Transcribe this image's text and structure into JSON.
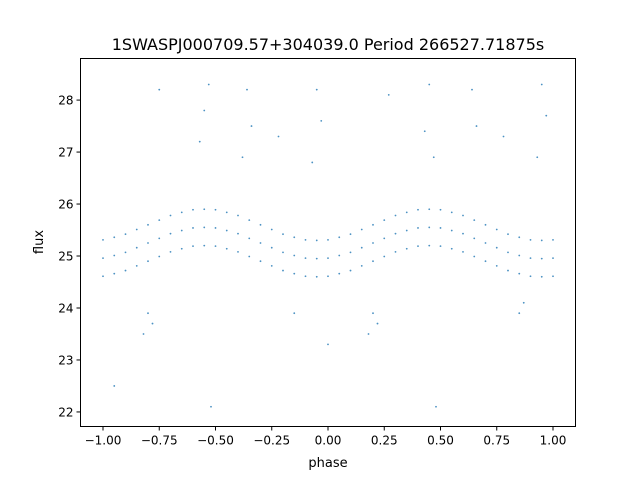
{
  "chart_data": {
    "type": "scatter",
    "title": "1SWASPJ000709.57+304039.0 Period 266527.71875s",
    "xlabel": "phase",
    "ylabel": "flux",
    "xlim": [
      -1.1,
      1.1
    ],
    "ylim": [
      21.72,
      28.8
    ],
    "xticks": [
      -1.0,
      -0.75,
      -0.5,
      -0.25,
      0.0,
      0.25,
      0.5,
      0.75,
      1.0
    ],
    "xtick_labels": [
      "−1.00",
      "−0.75",
      "−0.50",
      "−0.25",
      "0.00",
      "0.25",
      "0.50",
      "0.75",
      "1.00"
    ],
    "yticks": [
      22,
      23,
      24,
      25,
      26,
      27,
      28
    ],
    "ytick_labels": [
      "22",
      "23",
      "24",
      "25",
      "26",
      "27",
      "28"
    ],
    "grid": false,
    "legend": "none",
    "point_color": "#1f77b4",
    "note_points": "representative sample of the dense point cloud",
    "points": [
      [
        -1.0,
        24.61
      ],
      [
        -1.0,
        24.96
      ],
      [
        -1.0,
        25.31
      ],
      [
        -0.95,
        24.66
      ],
      [
        -0.95,
        25.01
      ],
      [
        -0.95,
        25.36
      ],
      [
        -0.9,
        24.72
      ],
      [
        -0.9,
        25.07
      ],
      [
        -0.9,
        25.42
      ],
      [
        -0.85,
        24.81
      ],
      [
        -0.85,
        25.16
      ],
      [
        -0.85,
        25.51
      ],
      [
        -0.8,
        24.9
      ],
      [
        -0.8,
        25.25
      ],
      [
        -0.8,
        25.6
      ],
      [
        -0.75,
        24.99
      ],
      [
        -0.75,
        25.34
      ],
      [
        -0.75,
        25.69
      ],
      [
        -0.7,
        25.08
      ],
      [
        -0.7,
        25.43
      ],
      [
        -0.7,
        25.78
      ],
      [
        -0.65,
        25.14
      ],
      [
        -0.65,
        25.49
      ],
      [
        -0.65,
        25.84
      ],
      [
        -0.6,
        25.19
      ],
      [
        -0.6,
        25.54
      ],
      [
        -0.6,
        25.89
      ],
      [
        -0.55,
        25.2
      ],
      [
        -0.55,
        25.55
      ],
      [
        -0.55,
        25.9
      ],
      [
        -0.5,
        25.19
      ],
      [
        -0.5,
        25.54
      ],
      [
        -0.5,
        25.89
      ],
      [
        -0.45,
        25.14
      ],
      [
        -0.45,
        25.49
      ],
      [
        -0.45,
        25.84
      ],
      [
        -0.4,
        25.08
      ],
      [
        -0.4,
        25.43
      ],
      [
        -0.4,
        25.78
      ],
      [
        -0.35,
        24.99
      ],
      [
        -0.35,
        25.34
      ],
      [
        -0.35,
        25.69
      ],
      [
        -0.3,
        24.9
      ],
      [
        -0.3,
        25.25
      ],
      [
        -0.3,
        25.6
      ],
      [
        -0.25,
        24.81
      ],
      [
        -0.25,
        25.16
      ],
      [
        -0.25,
        25.51
      ],
      [
        -0.2,
        24.72
      ],
      [
        -0.2,
        25.07
      ],
      [
        -0.2,
        25.42
      ],
      [
        -0.15,
        24.66
      ],
      [
        -0.15,
        25.01
      ],
      [
        -0.15,
        25.36
      ],
      [
        -0.1,
        24.61
      ],
      [
        -0.1,
        24.96
      ],
      [
        -0.1,
        25.31
      ],
      [
        -0.05,
        24.6
      ],
      [
        -0.05,
        24.95
      ],
      [
        -0.05,
        25.3
      ],
      [
        0.0,
        24.61
      ],
      [
        0.0,
        24.96
      ],
      [
        0.0,
        25.31
      ],
      [
        0.05,
        24.66
      ],
      [
        0.05,
        25.01
      ],
      [
        0.05,
        25.36
      ],
      [
        0.1,
        24.72
      ],
      [
        0.1,
        25.07
      ],
      [
        0.1,
        25.42
      ],
      [
        0.15,
        24.81
      ],
      [
        0.15,
        25.16
      ],
      [
        0.15,
        25.51
      ],
      [
        0.2,
        24.9
      ],
      [
        0.2,
        25.25
      ],
      [
        0.2,
        25.6
      ],
      [
        0.25,
        24.99
      ],
      [
        0.25,
        25.34
      ],
      [
        0.25,
        25.69
      ],
      [
        0.3,
        25.08
      ],
      [
        0.3,
        25.43
      ],
      [
        0.3,
        25.78
      ],
      [
        0.35,
        25.14
      ],
      [
        0.35,
        25.49
      ],
      [
        0.35,
        25.84
      ],
      [
        0.4,
        25.19
      ],
      [
        0.4,
        25.54
      ],
      [
        0.4,
        25.89
      ],
      [
        0.45,
        25.2
      ],
      [
        0.45,
        25.55
      ],
      [
        0.45,
        25.9
      ],
      [
        0.5,
        25.19
      ],
      [
        0.5,
        25.54
      ],
      [
        0.5,
        25.89
      ],
      [
        0.55,
        25.14
      ],
      [
        0.55,
        25.49
      ],
      [
        0.55,
        25.84
      ],
      [
        0.6,
        25.08
      ],
      [
        0.6,
        25.43
      ],
      [
        0.6,
        25.78
      ],
      [
        0.65,
        24.99
      ],
      [
        0.65,
        25.34
      ],
      [
        0.65,
        25.69
      ],
      [
        0.7,
        24.9
      ],
      [
        0.7,
        25.25
      ],
      [
        0.7,
        25.6
      ],
      [
        0.75,
        24.81
      ],
      [
        0.75,
        25.16
      ],
      [
        0.75,
        25.51
      ],
      [
        0.8,
        24.72
      ],
      [
        0.8,
        25.07
      ],
      [
        0.8,
        25.42
      ],
      [
        0.85,
        24.66
      ],
      [
        0.85,
        25.01
      ],
      [
        0.85,
        25.36
      ],
      [
        0.9,
        24.61
      ],
      [
        0.9,
        24.96
      ],
      [
        0.9,
        25.31
      ],
      [
        0.95,
        24.6
      ],
      [
        0.95,
        24.95
      ],
      [
        0.95,
        25.3
      ],
      [
        1.0,
        24.61
      ],
      [
        1.0,
        24.96
      ],
      [
        1.0,
        25.31
      ],
      [
        -0.55,
        27.8
      ],
      [
        -0.53,
        28.3
      ],
      [
        -0.57,
        27.2
      ],
      [
        -0.36,
        28.2
      ],
      [
        -0.34,
        27.5
      ],
      [
        -0.38,
        26.9
      ],
      [
        -0.05,
        28.2
      ],
      [
        -0.03,
        27.6
      ],
      [
        -0.07,
        26.8
      ],
      [
        0.45,
        28.3
      ],
      [
        0.43,
        27.4
      ],
      [
        0.47,
        26.9
      ],
      [
        0.64,
        28.2
      ],
      [
        0.66,
        27.5
      ],
      [
        0.95,
        28.3
      ],
      [
        0.97,
        27.7
      ],
      [
        0.93,
        26.9
      ],
      [
        -0.82,
        23.5
      ],
      [
        -0.8,
        23.9
      ],
      [
        -0.78,
        23.7
      ],
      [
        0.18,
        23.5
      ],
      [
        0.2,
        23.9
      ],
      [
        0.22,
        23.7
      ],
      [
        -0.15,
        23.9
      ],
      [
        0.85,
        23.9
      ],
      [
        0.87,
        24.1
      ],
      [
        -0.22,
        27.3
      ],
      [
        0.78,
        27.3
      ],
      [
        -0.52,
        22.1
      ],
      [
        0.48,
        22.1
      ],
      [
        -0.95,
        22.5
      ],
      [
        0.0,
        23.3
      ],
      [
        -0.75,
        28.2
      ],
      [
        0.27,
        28.1
      ]
    ]
  }
}
